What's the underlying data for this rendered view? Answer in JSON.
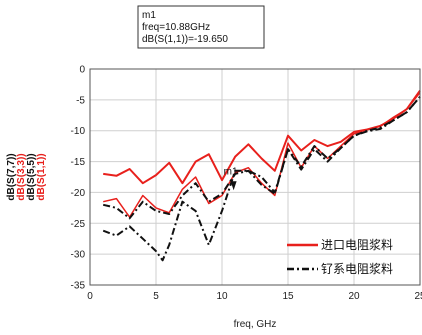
{
  "marker": {
    "name": "m1",
    "freq_text": "freq=10.88GHz",
    "value_text": "dB(S(1,1))=-19.650",
    "x": 10.88,
    "y": -19.65
  },
  "chart_data": {
    "type": "line",
    "xlabel": "freq, GHz",
    "xlim": [
      0,
      25
    ],
    "ylim": [
      -35,
      0
    ],
    "xticks": [
      0,
      5,
      10,
      15,
      20,
      25
    ],
    "yticks": [
      0,
      -5,
      -10,
      -15,
      -20,
      -25,
      -30,
      -35
    ],
    "grid": true,
    "legend_position": "bottom-right",
    "ylabels": [
      {
        "text": "dB(S(7,7))",
        "color": "#111111"
      },
      {
        "text": "dB(S(3,3))",
        "color": "#e8201c"
      },
      {
        "text": "dB(S(5,5))",
        "color": "#111111"
      },
      {
        "text": "dB(S(1,1))",
        "color": "#e8201c"
      }
    ],
    "legend": [
      {
        "label": "进口电阻浆料",
        "color": "#e8201c",
        "dash": "solid"
      },
      {
        "label": "钌系电阻浆料",
        "color": "#111111",
        "dash": "dashdot"
      }
    ],
    "series": [
      {
        "name": "进口电阻浆料",
        "color": "#e8201c",
        "dash": "solid",
        "width": 2,
        "x": [
          1,
          2,
          3,
          4,
          5,
          6,
          7,
          8,
          9,
          10,
          11,
          12,
          13,
          14,
          15,
          16,
          17,
          18,
          19,
          20,
          21,
          22,
          23,
          24,
          25
        ],
        "y": [
          -17,
          -17.3,
          -16.2,
          -18.5,
          -17.2,
          -15.2,
          -18.5,
          -15,
          -13.8,
          -18,
          -14.2,
          -12.2,
          -14.5,
          -16.5,
          -10.8,
          -13.2,
          -11.5,
          -12.5,
          -11.8,
          -10.2,
          -9.8,
          -9.2,
          -8,
          -6.5,
          -3.5
        ]
      },
      {
        "name": "钌系电阻浆料 S(3,3)",
        "color": "#e8201c",
        "dash": "solid",
        "width": 1.5,
        "x": [
          1,
          2,
          3,
          4,
          5,
          6,
          7,
          8,
          9,
          10,
          11,
          12,
          13,
          14,
          15,
          16,
          17,
          18,
          19,
          20,
          21,
          22,
          23,
          24,
          25
        ],
        "y": [
          -21.5,
          -21,
          -24,
          -20.5,
          -22.5,
          -23.3,
          -19.5,
          -17.5,
          -21.8,
          -20.5,
          -16.8,
          -16,
          -18.5,
          -20.5,
          -12,
          -16,
          -12.5,
          -14.5,
          -12.5,
          -10.5,
          -9.8,
          -9.3,
          -7.8,
          -6.5,
          -3.8
        ]
      },
      {
        "name": "钌系电阻浆料 S(5,5)",
        "color": "#111111",
        "dash": "dashdot",
        "width": 2,
        "x": [
          1,
          2,
          3,
          4,
          5,
          6,
          7,
          8,
          9,
          10,
          11,
          12,
          13,
          14,
          15,
          16,
          17,
          18,
          19,
          20,
          21,
          22,
          23,
          24,
          25
        ],
        "y": [
          -22,
          -22.5,
          -24.2,
          -21.5,
          -23,
          -23.5,
          -20.5,
          -18.5,
          -21.5,
          -20.2,
          -17,
          -16.5,
          -18.8,
          -20.2,
          -13,
          -16.3,
          -13,
          -15,
          -12.8,
          -10.8,
          -10.1,
          -9.7,
          -8.3,
          -7,
          -4.5
        ]
      },
      {
        "name": "钌系电阻浆料 S(7,7)",
        "color": "#111111",
        "dash": "dashdot",
        "width": 2,
        "x": [
          1,
          2,
          3,
          4,
          5,
          5.5,
          6,
          7,
          8,
          9,
          10,
          11,
          12,
          13,
          14,
          15,
          16,
          17,
          18,
          19,
          20,
          21,
          22,
          23,
          24,
          25
        ],
        "y": [
          -26.2,
          -27,
          -25.5,
          -27.5,
          -29.5,
          -31,
          -28.5,
          -21.5,
          -23,
          -28.5,
          -23,
          -16.5,
          -16.5,
          -17.5,
          -20,
          -13,
          -15.8,
          -12.5,
          -14.5,
          -12.8,
          -10.8,
          -10,
          -9.5,
          -8.3,
          -7,
          -4.5
        ]
      }
    ]
  }
}
